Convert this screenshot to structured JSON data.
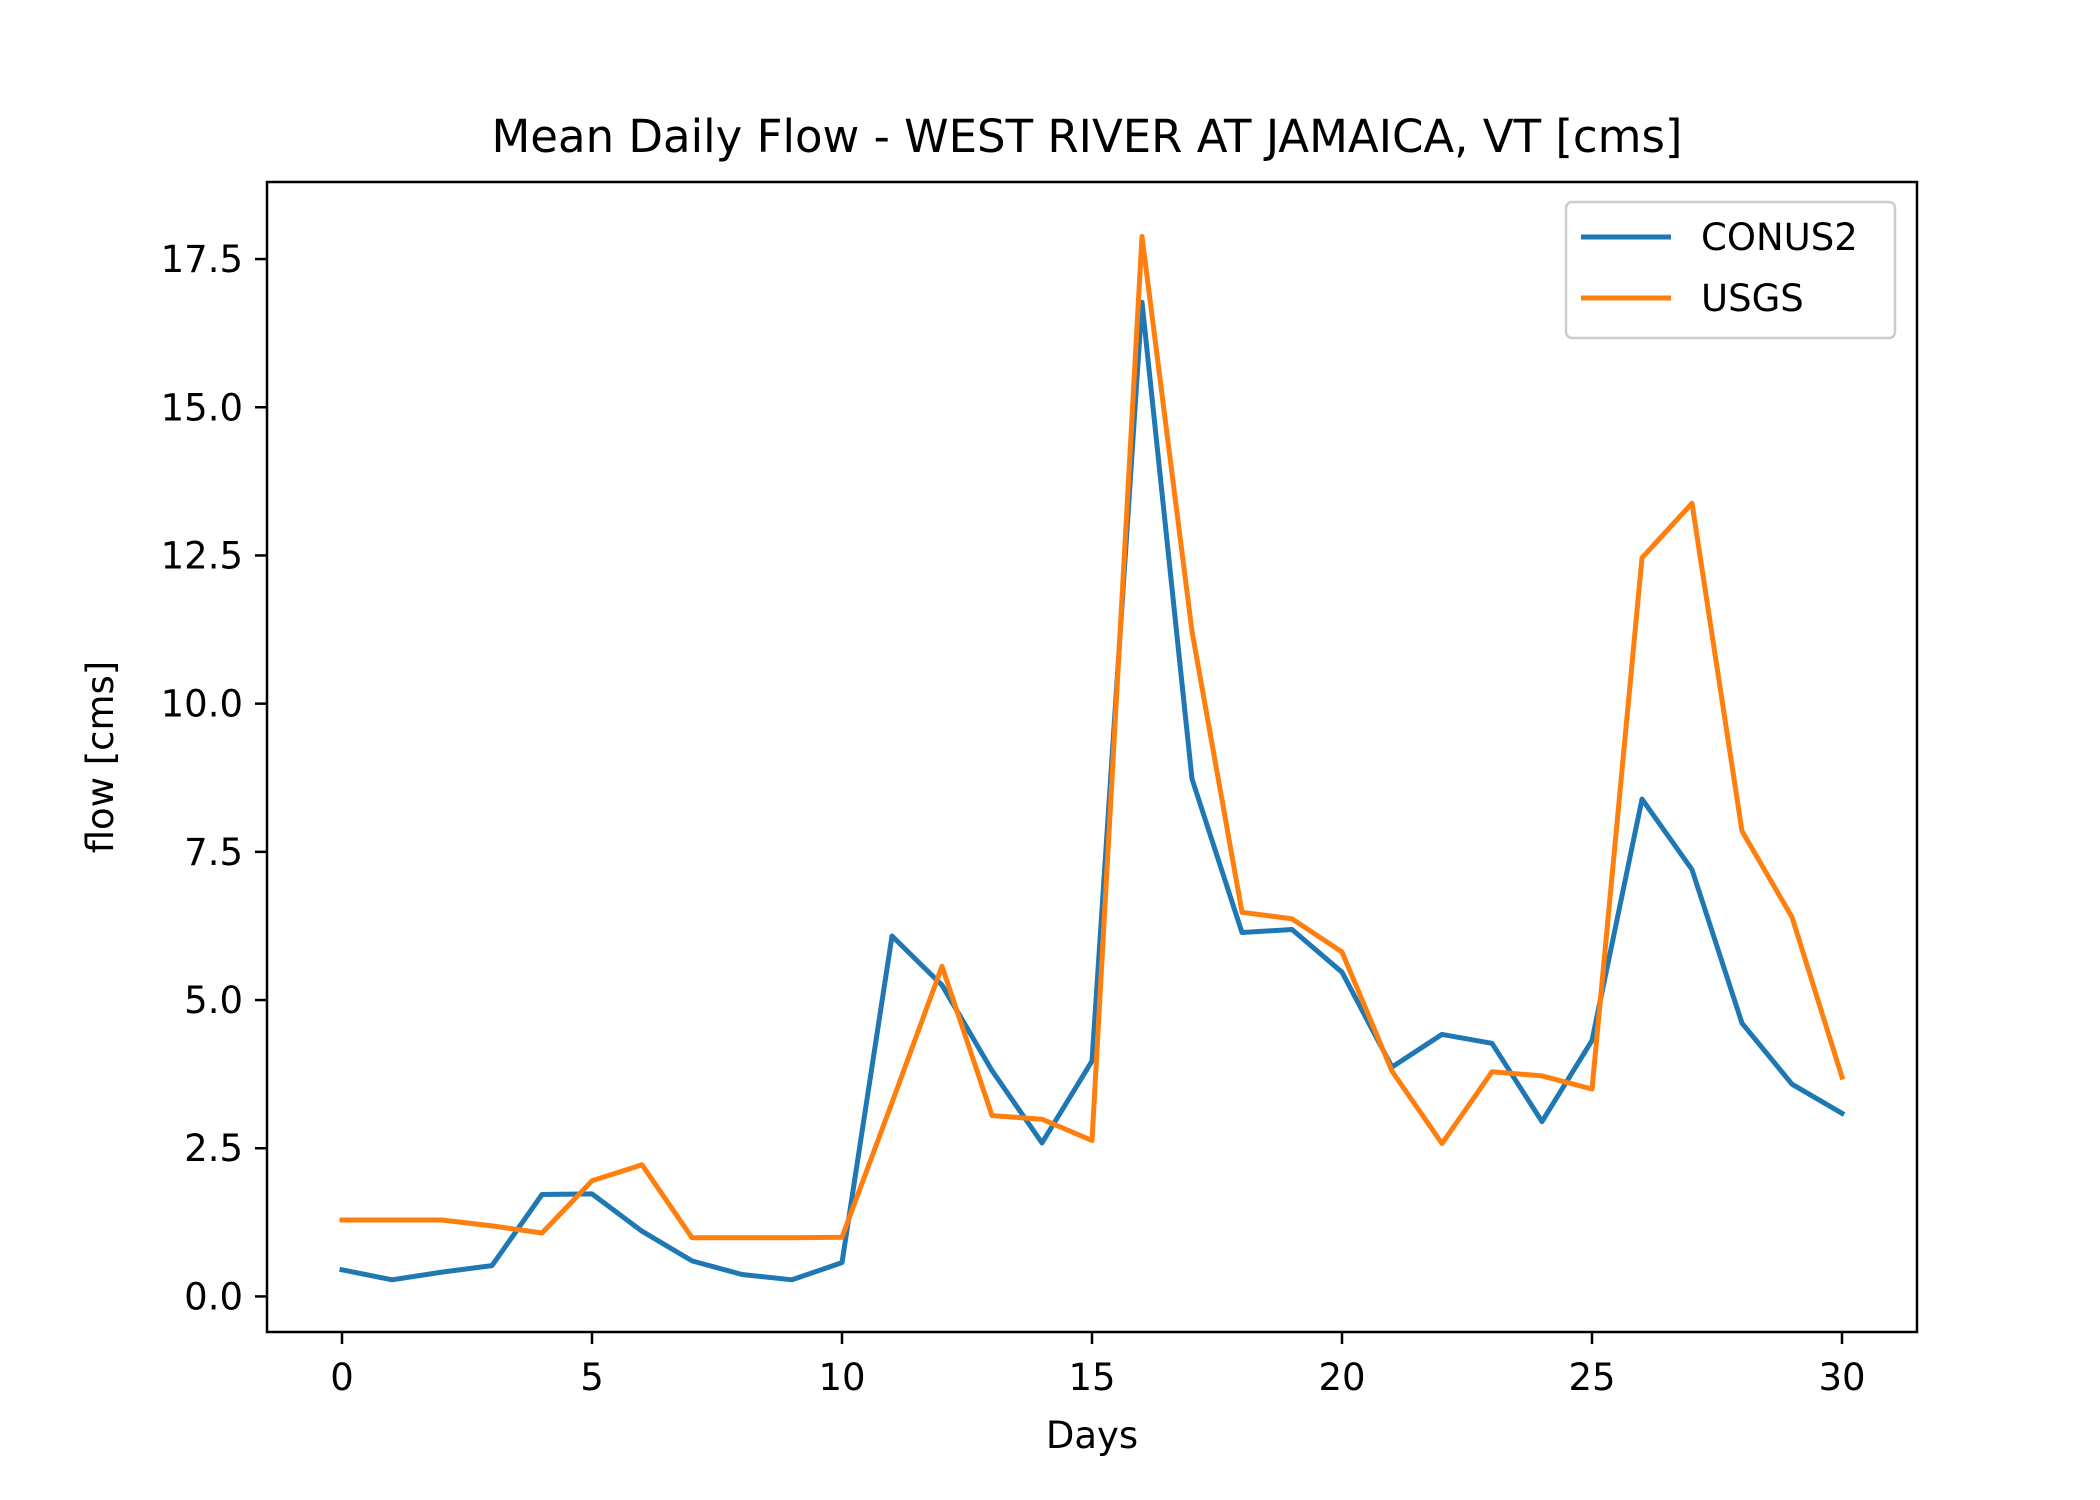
{
  "chart_data": {
    "type": "line",
    "title": "Mean Daily Flow - WEST RIVER AT JAMAICA, VT [cms]",
    "xlabel": "Days",
    "ylabel": "flow [cms]",
    "xlim": [
      -1.5,
      31.5
    ],
    "ylim": [
      -0.6,
      18.8
    ],
    "xticks": [
      0,
      5,
      10,
      15,
      20,
      25,
      30
    ],
    "xtick_labels": [
      "0",
      "5",
      "10",
      "15",
      "20",
      "25",
      "30"
    ],
    "yticks": [
      0.0,
      2.5,
      5.0,
      7.5,
      10.0,
      12.5,
      15.0,
      17.5
    ],
    "ytick_labels": [
      "0.0",
      "2.5",
      "5.0",
      "7.5",
      "10.0",
      "12.5",
      "15.0",
      "17.5"
    ],
    "grid": false,
    "legend": "top-right",
    "x": [
      0,
      1,
      2,
      3,
      4,
      5,
      6,
      7,
      8,
      9,
      10,
      11,
      12,
      13,
      14,
      15,
      16,
      17,
      18,
      19,
      20,
      21,
      22,
      23,
      24,
      25,
      26,
      27,
      28,
      29,
      30
    ],
    "series": [
      {
        "name": "CONUS2",
        "color": "#1f77b4",
        "values": [
          0.45,
          0.28,
          0.41,
          0.52,
          1.72,
          1.73,
          1.1,
          0.6,
          0.37,
          0.28,
          0.57,
          6.08,
          5.25,
          3.81,
          2.59,
          3.97,
          16.77,
          8.73,
          6.14,
          6.19,
          5.47,
          3.87,
          4.42,
          4.27,
          2.95,
          4.32,
          8.39,
          7.2,
          4.61,
          3.58,
          3.09
        ]
      },
      {
        "name": "USGS",
        "color": "#ff7f0e",
        "values": [
          1.29,
          1.29,
          1.29,
          1.19,
          1.07,
          1.95,
          2.22,
          0.99,
          0.99,
          0.99,
          1.0,
          3.27,
          5.57,
          3.05,
          2.99,
          2.63,
          17.88,
          11.22,
          6.48,
          6.37,
          5.81,
          3.8,
          2.58,
          3.79,
          3.72,
          3.5,
          12.46,
          13.38,
          7.85,
          6.4,
          3.7
        ]
      }
    ]
  }
}
